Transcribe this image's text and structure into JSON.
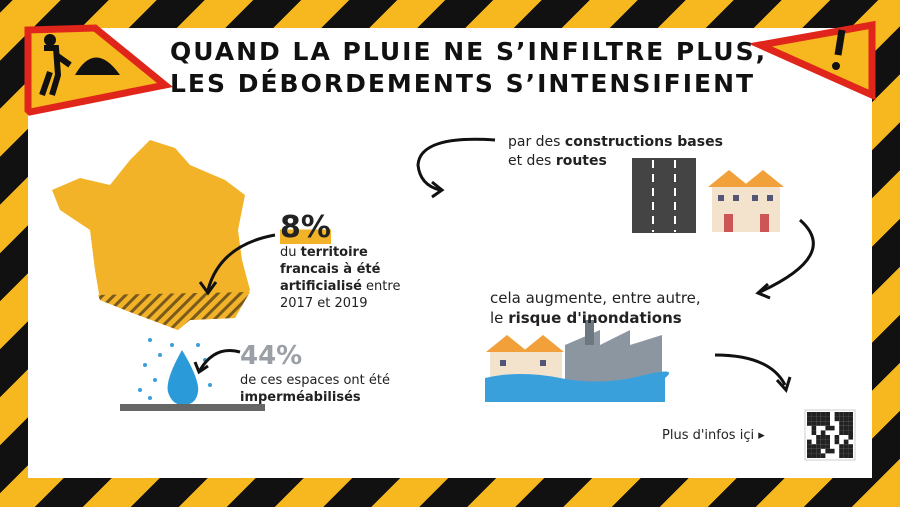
{
  "header": {
    "title_lines": [
      "QUAND LA PLUIE NE S’INFILTRE PLUS,",
      "LES DÉBORDEMENTS S’INTENSIFIENT"
    ]
  },
  "stat_territory": {
    "value": "8%",
    "text": [
      "du",
      "territoire",
      "francais à été",
      "artificialisé",
      "entre",
      "2017 et 2019"
    ]
  },
  "stat_impermeable": {
    "value": "44%",
    "text": [
      "de ces espaces ont été",
      "imperméabilisés"
    ]
  },
  "cause": {
    "text": [
      "par des",
      "constructions bases",
      "et des",
      "routes"
    ]
  },
  "consequence": {
    "text": [
      "cela augmente, entre autre,",
      "le",
      "risque d'inondations"
    ]
  },
  "link": {
    "label": "Plus d'infos içi ▸"
  }
}
